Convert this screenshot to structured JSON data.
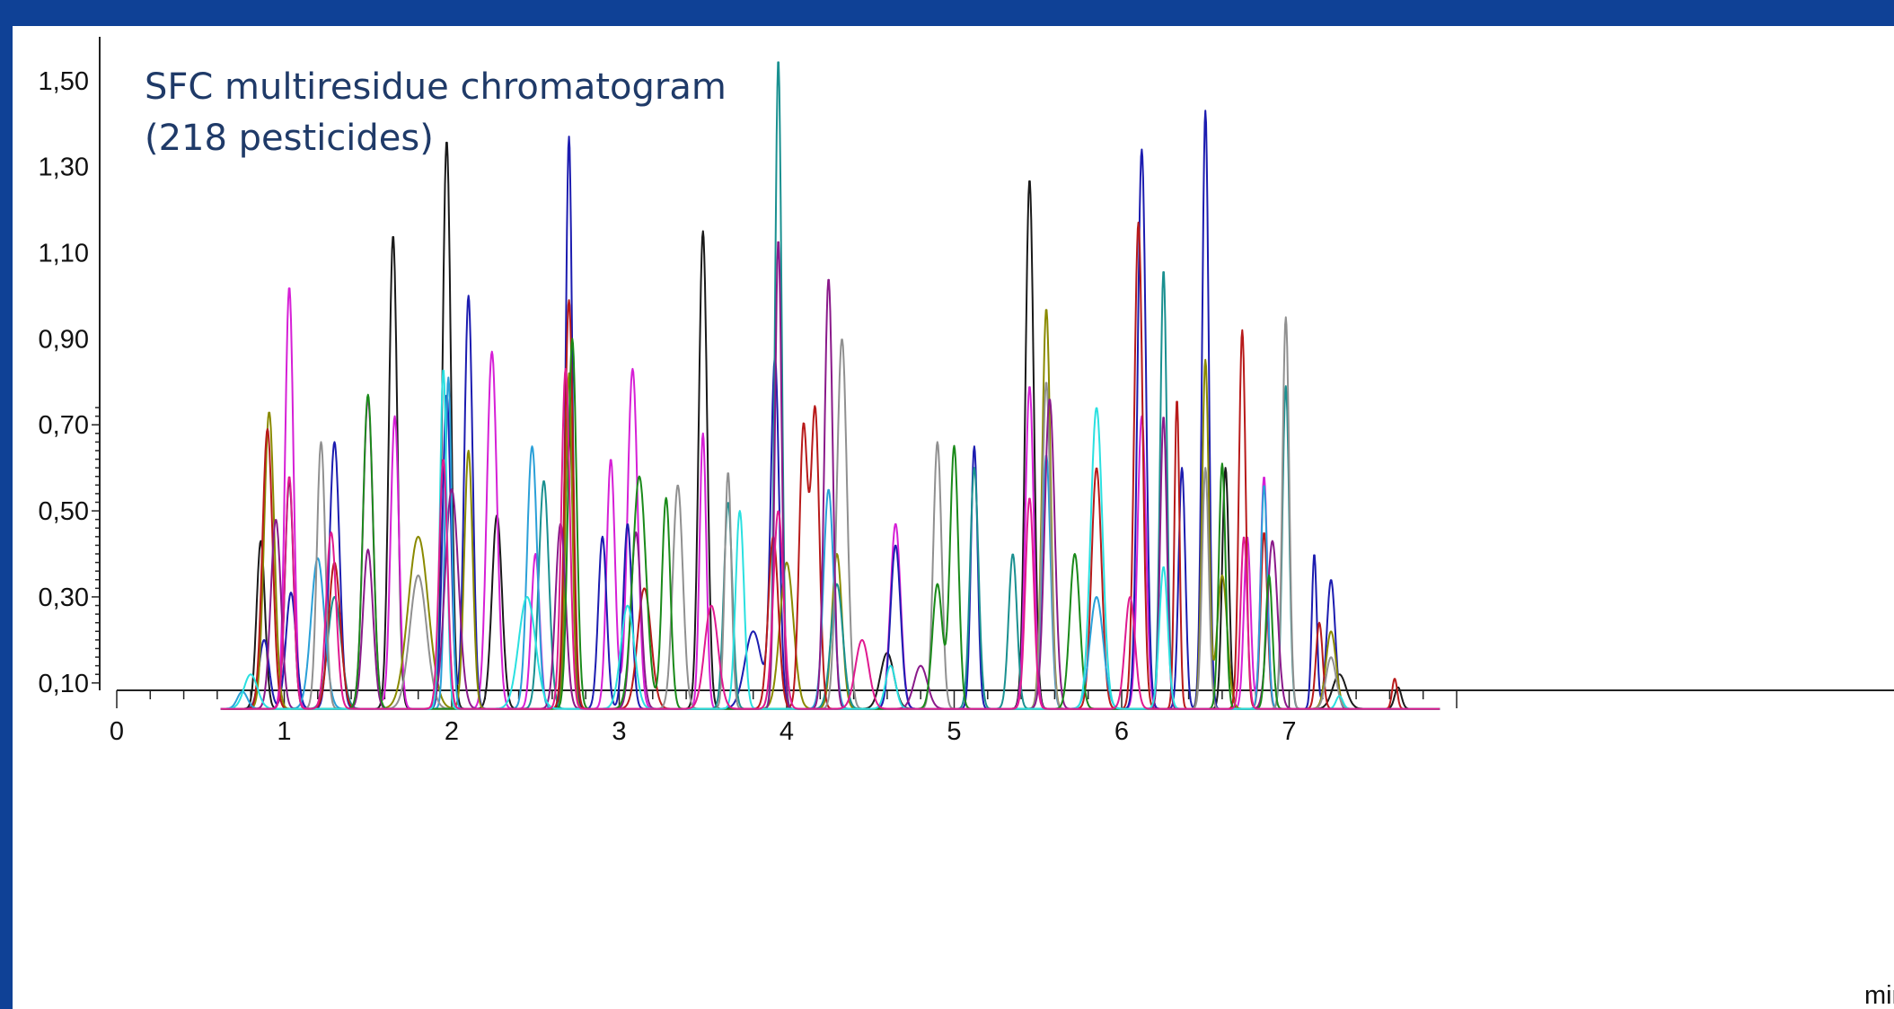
{
  "chart_data": {
    "type": "line",
    "title": "SFC multiresidue chromatogram\n(218 pesticides)",
    "xlabel": "min",
    "ylabel": "",
    "xlim": [
      0,
      7.9
    ],
    "ylim": [
      0.0,
      1.55
    ],
    "baseline": 0.04,
    "grid": false,
    "legend": "none",
    "x_ticks": [
      "0",
      "1",
      "2",
      "3",
      "4",
      "5",
      "6",
      "7"
    ],
    "y_ticks": [
      "0,10",
      "0,30",
      "0,50",
      "0,70",
      "0,90",
      "1,10",
      "1,30",
      "1,50"
    ],
    "colors": [
      "#1a1a1a",
      "#d61fd6",
      "#1c1cb0",
      "#8a8a00",
      "#1a9090",
      "#b81a1a",
      "#2aa0d8",
      "#909090",
      "#8a1a8a",
      "#1a8a1a",
      "#2ae0e0",
      "#e01a90"
    ],
    "series": [
      {
        "color": "#1a1a1a",
        "peaks": [
          [
            0.86,
            0.43,
            0.025
          ],
          [
            1.03,
            0.57,
            0.025
          ],
          [
            1.65,
            1.14,
            0.025
          ],
          [
            1.97,
            1.36,
            0.025
          ],
          [
            2.27,
            0.49,
            0.03
          ],
          [
            2.7,
            0.71,
            0.025
          ],
          [
            3.5,
            1.15,
            0.025
          ],
          [
            5.45,
            1.27,
            0.025
          ],
          [
            4.6,
            0.17,
            0.04
          ],
          [
            6.62,
            0.6,
            0.02
          ],
          [
            7.3,
            0.12,
            0.04
          ],
          [
            7.65,
            0.09,
            0.02
          ]
        ]
      },
      {
        "color": "#d61fd6",
        "peaks": [
          [
            1.03,
            1.02,
            0.025
          ],
          [
            1.5,
            0.76,
            0.03
          ],
          [
            1.66,
            0.72,
            0.025
          ],
          [
            2.24,
            0.87,
            0.03
          ],
          [
            2.5,
            0.4,
            0.025
          ],
          [
            2.95,
            0.62,
            0.025
          ],
          [
            3.08,
            0.83,
            0.03
          ],
          [
            3.5,
            0.68,
            0.02
          ],
          [
            4.65,
            0.47,
            0.03
          ],
          [
            5.45,
            0.79,
            0.025
          ],
          [
            6.12,
            0.72,
            0.025
          ],
          [
            6.75,
            0.44,
            0.02
          ],
          [
            6.85,
            0.58,
            0.02
          ]
        ]
      },
      {
        "color": "#1c1cb0",
        "peaks": [
          [
            0.88,
            0.2,
            0.03
          ],
          [
            1.04,
            0.31,
            0.03
          ],
          [
            1.3,
            0.66,
            0.03
          ],
          [
            1.97,
            0.77,
            0.025
          ],
          [
            2.1,
            1.0,
            0.025
          ],
          [
            2.7,
            1.37,
            0.02
          ],
          [
            2.9,
            0.44,
            0.025
          ],
          [
            3.05,
            0.47,
            0.025
          ],
          [
            3.93,
            0.85,
            0.025
          ],
          [
            4.65,
            0.42,
            0.03
          ],
          [
            5.12,
            0.65,
            0.02
          ],
          [
            6.12,
            1.34,
            0.025
          ],
          [
            6.36,
            0.6,
            0.02
          ],
          [
            6.5,
            1.43,
            0.02
          ],
          [
            7.15,
            0.4,
            0.015
          ],
          [
            7.25,
            0.34,
            0.025
          ],
          [
            3.8,
            0.22,
            0.05
          ]
        ]
      },
      {
        "color": "#8a8a00",
        "peaks": [
          [
            0.91,
            0.73,
            0.03
          ],
          [
            1.8,
            0.44,
            0.06
          ],
          [
            2.1,
            0.64,
            0.025
          ],
          [
            2.7,
            0.82,
            0.02
          ],
          [
            4.0,
            0.38,
            0.04
          ],
          [
            4.3,
            0.4,
            0.03
          ],
          [
            5.55,
            0.97,
            0.025
          ],
          [
            6.5,
            0.85,
            0.02
          ],
          [
            7.25,
            0.22,
            0.03
          ],
          [
            6.6,
            0.35,
            0.03
          ]
        ]
      },
      {
        "color": "#1a9090",
        "peaks": [
          [
            3.95,
            1.55,
            0.02
          ],
          [
            2.55,
            0.57,
            0.03
          ],
          [
            3.65,
            0.52,
            0.025
          ],
          [
            5.12,
            0.6,
            0.025
          ],
          [
            6.25,
            1.06,
            0.02
          ],
          [
            6.98,
            0.79,
            0.02
          ],
          [
            1.3,
            0.3,
            0.04
          ],
          [
            5.35,
            0.4,
            0.025
          ],
          [
            4.3,
            0.33,
            0.035
          ]
        ]
      },
      {
        "color": "#b81a1a",
        "peaks": [
          [
            0.9,
            0.69,
            0.03
          ],
          [
            1.3,
            0.38,
            0.035
          ],
          [
            2.7,
            0.99,
            0.025
          ],
          [
            3.15,
            0.32,
            0.04
          ],
          [
            3.92,
            0.44,
            0.03
          ],
          [
            4.1,
            0.69,
            0.025
          ],
          [
            4.17,
            0.73,
            0.025
          ],
          [
            5.85,
            0.6,
            0.03
          ],
          [
            6.1,
            1.17,
            0.025
          ],
          [
            6.33,
            0.76,
            0.015
          ],
          [
            6.72,
            0.92,
            0.02
          ],
          [
            6.85,
            0.45,
            0.02
          ],
          [
            7.63,
            0.11,
            0.015
          ],
          [
            7.18,
            0.24,
            0.02
          ]
        ]
      },
      {
        "color": "#2aa0d8",
        "peaks": [
          [
            1.2,
            0.39,
            0.04
          ],
          [
            1.98,
            0.81,
            0.02
          ],
          [
            2.48,
            0.65,
            0.03
          ],
          [
            4.25,
            0.55,
            0.03
          ],
          [
            5.55,
            0.63,
            0.025
          ],
          [
            5.85,
            0.3,
            0.04
          ],
          [
            6.85,
            0.56,
            0.02
          ],
          [
            0.75,
            0.08,
            0.03
          ]
        ]
      },
      {
        "color": "#909090",
        "peaks": [
          [
            1.22,
            0.66,
            0.025
          ],
          [
            1.8,
            0.35,
            0.05
          ],
          [
            3.35,
            0.56,
            0.03
          ],
          [
            3.65,
            0.59,
            0.02
          ],
          [
            4.33,
            0.9,
            0.03
          ],
          [
            4.9,
            0.66,
            0.025
          ],
          [
            5.55,
            0.8,
            0.025
          ],
          [
            6.5,
            0.6,
            0.02
          ],
          [
            6.98,
            0.95,
            0.02
          ],
          [
            7.25,
            0.16,
            0.03
          ]
        ]
      },
      {
        "color": "#8a1a8a",
        "peaks": [
          [
            0.95,
            0.48,
            0.03
          ],
          [
            1.5,
            0.41,
            0.03
          ],
          [
            2.0,
            0.55,
            0.04
          ],
          [
            2.65,
            0.47,
            0.03
          ],
          [
            3.1,
            0.45,
            0.03
          ],
          [
            3.95,
            1.13,
            0.02
          ],
          [
            4.25,
            1.04,
            0.025
          ],
          [
            5.57,
            0.76,
            0.03
          ],
          [
            6.25,
            0.72,
            0.02
          ],
          [
            6.9,
            0.43,
            0.03
          ],
          [
            4.8,
            0.14,
            0.04
          ]
        ]
      },
      {
        "color": "#1a8a1a",
        "peaks": [
          [
            1.5,
            0.77,
            0.03
          ],
          [
            2.72,
            0.9,
            0.025
          ],
          [
            3.12,
            0.58,
            0.04
          ],
          [
            3.28,
            0.53,
            0.025
          ],
          [
            5.0,
            0.65,
            0.025
          ],
          [
            5.72,
            0.4,
            0.03
          ],
          [
            6.6,
            0.61,
            0.02
          ],
          [
            6.88,
            0.35,
            0.02
          ],
          [
            4.9,
            0.33,
            0.03
          ]
        ]
      },
      {
        "color": "#2ae0e0",
        "peaks": [
          [
            1.95,
            0.83,
            0.02
          ],
          [
            2.45,
            0.3,
            0.05
          ],
          [
            3.72,
            0.5,
            0.025
          ],
          [
            5.85,
            0.74,
            0.035
          ],
          [
            6.25,
            0.37,
            0.025
          ],
          [
            7.3,
            0.07,
            0.02
          ],
          [
            0.8,
            0.12,
            0.04
          ],
          [
            4.62,
            0.14,
            0.03
          ],
          [
            3.05,
            0.28,
            0.04
          ]
        ]
      },
      {
        "color": "#e01a90",
        "peaks": [
          [
            1.03,
            0.58,
            0.025
          ],
          [
            1.28,
            0.45,
            0.03
          ],
          [
            1.95,
            0.62,
            0.025
          ],
          [
            2.68,
            0.83,
            0.025
          ],
          [
            3.55,
            0.28,
            0.04
          ],
          [
            3.95,
            0.5,
            0.03
          ],
          [
            5.45,
            0.53,
            0.025
          ],
          [
            6.05,
            0.3,
            0.03
          ],
          [
            6.73,
            0.44,
            0.02
          ],
          [
            4.45,
            0.2,
            0.04
          ]
        ]
      }
    ]
  }
}
